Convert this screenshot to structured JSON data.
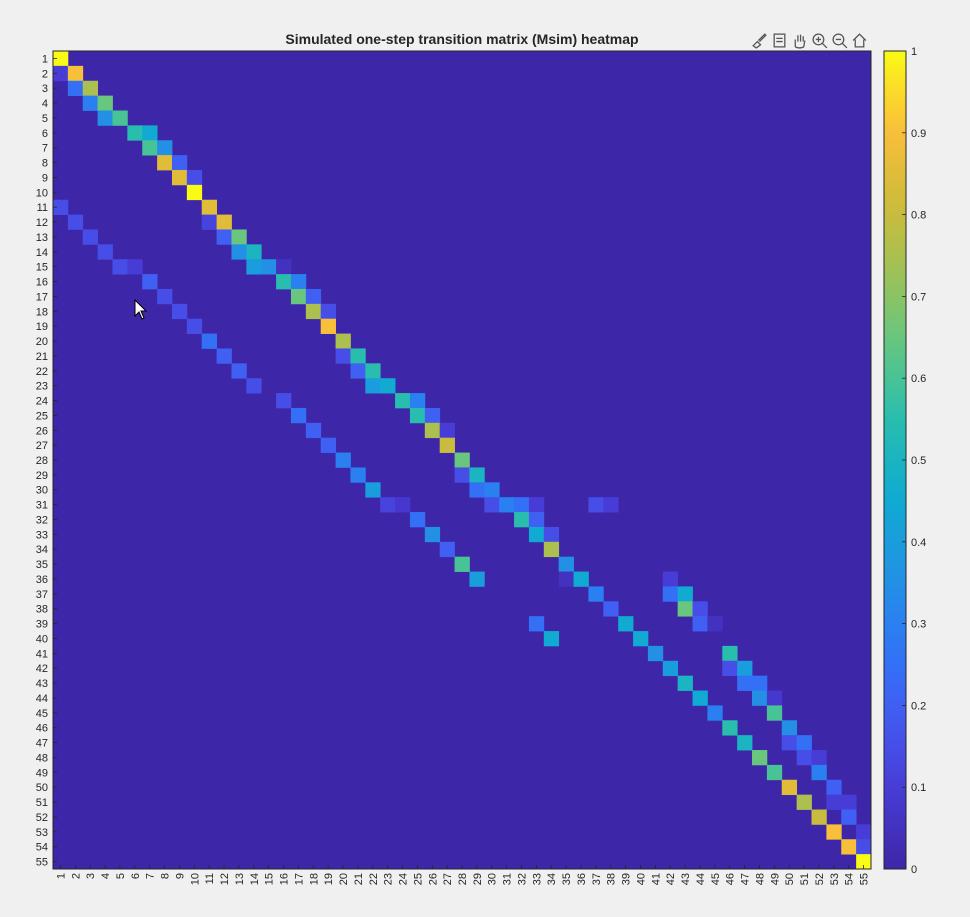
{
  "chart_data": {
    "type": "heatmap",
    "title": "Simulated one-step transition matrix (Msim) heatmap",
    "n": 55,
    "row_labels": [
      "1",
      "2",
      "3",
      "4",
      "5",
      "6",
      "7",
      "8",
      "9",
      "10",
      "11",
      "12",
      "13",
      "14",
      "15",
      "16",
      "17",
      "18",
      "19",
      "20",
      "21",
      "22",
      "23",
      "24",
      "25",
      "26",
      "27",
      "28",
      "29",
      "30",
      "31",
      "32",
      "33",
      "34",
      "35",
      "36",
      "37",
      "38",
      "39",
      "40",
      "41",
      "42",
      "43",
      "44",
      "45",
      "46",
      "47",
      "48",
      "49",
      "50",
      "51",
      "52",
      "53",
      "54",
      "55"
    ],
    "col_labels": [
      "1",
      "2",
      "3",
      "4",
      "5",
      "6",
      "7",
      "8",
      "9",
      "10",
      "11",
      "12",
      "13",
      "14",
      "15",
      "16",
      "17",
      "18",
      "19",
      "20",
      "21",
      "22",
      "23",
      "24",
      "25",
      "26",
      "27",
      "28",
      "29",
      "30",
      "31",
      "32",
      "33",
      "34",
      "35",
      "36",
      "37",
      "38",
      "39",
      "40",
      "41",
      "42",
      "43",
      "44",
      "45",
      "46",
      "47",
      "48",
      "49",
      "50",
      "51",
      "52",
      "53",
      "54",
      "55"
    ],
    "clim": [
      0,
      1
    ],
    "colormap": "parula",
    "colorbar_ticks": [
      "0",
      "0.1",
      "0.2",
      "0.3",
      "0.4",
      "0.5",
      "0.6",
      "0.7",
      "0.8",
      "0.9",
      "1"
    ],
    "entries": [
      [
        1,
        1,
        1.0
      ],
      [
        2,
        1,
        0.1
      ],
      [
        2,
        2,
        0.9
      ],
      [
        3,
        2,
        0.25
      ],
      [
        3,
        3,
        0.75
      ],
      [
        4,
        3,
        0.3
      ],
      [
        4,
        4,
        0.65
      ],
      [
        5,
        4,
        0.35
      ],
      [
        5,
        5,
        0.6
      ],
      [
        6,
        6,
        0.55
      ],
      [
        6,
        7,
        0.45
      ],
      [
        7,
        7,
        0.6
      ],
      [
        7,
        8,
        0.35
      ],
      [
        8,
        8,
        0.85
      ],
      [
        8,
        9,
        0.2
      ],
      [
        9,
        9,
        0.85
      ],
      [
        9,
        10,
        0.15
      ],
      [
        10,
        10,
        1.0
      ],
      [
        11,
        1,
        0.15
      ],
      [
        11,
        11,
        0.85
      ],
      [
        12,
        2,
        0.15
      ],
      [
        12,
        11,
        0.12
      ],
      [
        12,
        12,
        0.85
      ],
      [
        13,
        3,
        0.15
      ],
      [
        13,
        12,
        0.2
      ],
      [
        13,
        13,
        0.65
      ],
      [
        14,
        4,
        0.15
      ],
      [
        14,
        13,
        0.35
      ],
      [
        14,
        14,
        0.5
      ],
      [
        15,
        5,
        0.15
      ],
      [
        15,
        6,
        0.1
      ],
      [
        15,
        14,
        0.4
      ],
      [
        15,
        15,
        0.35
      ],
      [
        15,
        16,
        0.05
      ],
      [
        16,
        7,
        0.2
      ],
      [
        16,
        16,
        0.55
      ],
      [
        16,
        17,
        0.3
      ],
      [
        17,
        8,
        0.15
      ],
      [
        17,
        17,
        0.65
      ],
      [
        17,
        18,
        0.2
      ],
      [
        18,
        9,
        0.15
      ],
      [
        18,
        18,
        0.75
      ],
      [
        18,
        19,
        0.15
      ],
      [
        19,
        10,
        0.15
      ],
      [
        19,
        19,
        0.9
      ],
      [
        20,
        11,
        0.25
      ],
      [
        20,
        20,
        0.75
      ],
      [
        21,
        12,
        0.2
      ],
      [
        21,
        20,
        0.15
      ],
      [
        21,
        21,
        0.55
      ],
      [
        22,
        13,
        0.2
      ],
      [
        22,
        21,
        0.2
      ],
      [
        22,
        22,
        0.55
      ],
      [
        23,
        14,
        0.15
      ],
      [
        23,
        22,
        0.4
      ],
      [
        23,
        23,
        0.45
      ],
      [
        24,
        16,
        0.15
      ],
      [
        24,
        24,
        0.55
      ],
      [
        24,
        25,
        0.3
      ],
      [
        25,
        17,
        0.25
      ],
      [
        25,
        25,
        0.55
      ],
      [
        25,
        26,
        0.2
      ],
      [
        26,
        18,
        0.2
      ],
      [
        26,
        26,
        0.75
      ],
      [
        26,
        27,
        0.1
      ],
      [
        27,
        19,
        0.2
      ],
      [
        27,
        27,
        0.8
      ],
      [
        28,
        20,
        0.3
      ],
      [
        28,
        28,
        0.65
      ],
      [
        29,
        21,
        0.3
      ],
      [
        29,
        28,
        0.15
      ],
      [
        29,
        29,
        0.5
      ],
      [
        30,
        22,
        0.4
      ],
      [
        30,
        29,
        0.25
      ],
      [
        30,
        30,
        0.3
      ],
      [
        31,
        23,
        0.12
      ],
      [
        31,
        24,
        0.08
      ],
      [
        31,
        30,
        0.15
      ],
      [
        31,
        31,
        0.3
      ],
      [
        31,
        32,
        0.25
      ],
      [
        31,
        33,
        0.1
      ],
      [
        31,
        37,
        0.15
      ],
      [
        31,
        38,
        0.1
      ],
      [
        32,
        25,
        0.25
      ],
      [
        32,
        32,
        0.55
      ],
      [
        32,
        33,
        0.2
      ],
      [
        33,
        26,
        0.35
      ],
      [
        33,
        33,
        0.45
      ],
      [
        33,
        34,
        0.15
      ],
      [
        34,
        27,
        0.2
      ],
      [
        34,
        34,
        0.75
      ],
      [
        35,
        28,
        0.6
      ],
      [
        35,
        35,
        0.35
      ],
      [
        36,
        29,
        0.4
      ],
      [
        36,
        35,
        0.05
      ],
      [
        36,
        36,
        0.45
      ],
      [
        36,
        42,
        0.1
      ],
      [
        37,
        37,
        0.3
      ],
      [
        37,
        42,
        0.25
      ],
      [
        37,
        43,
        0.45
      ],
      [
        38,
        38,
        0.2
      ],
      [
        38,
        43,
        0.65
      ],
      [
        38,
        44,
        0.15
      ],
      [
        39,
        33,
        0.25
      ],
      [
        39,
        39,
        0.45
      ],
      [
        39,
        44,
        0.2
      ],
      [
        39,
        45,
        0.05
      ],
      [
        40,
        34,
        0.45
      ],
      [
        40,
        40,
        0.45
      ],
      [
        41,
        41,
        0.35
      ],
      [
        41,
        46,
        0.55
      ],
      [
        42,
        42,
        0.4
      ],
      [
        42,
        46,
        0.15
      ],
      [
        42,
        47,
        0.4
      ],
      [
        43,
        43,
        0.5
      ],
      [
        43,
        47,
        0.25
      ],
      [
        43,
        48,
        0.25
      ],
      [
        44,
        44,
        0.45
      ],
      [
        44,
        48,
        0.35
      ],
      [
        44,
        49,
        0.08
      ],
      [
        45,
        45,
        0.3
      ],
      [
        45,
        49,
        0.6
      ],
      [
        46,
        46,
        0.55
      ],
      [
        46,
        50,
        0.35
      ],
      [
        47,
        47,
        0.5
      ],
      [
        47,
        50,
        0.15
      ],
      [
        47,
        51,
        0.25
      ],
      [
        48,
        48,
        0.65
      ],
      [
        48,
        51,
        0.15
      ],
      [
        48,
        52,
        0.1
      ],
      [
        49,
        49,
        0.6
      ],
      [
        49,
        52,
        0.3
      ],
      [
        50,
        50,
        0.85
      ],
      [
        50,
        53,
        0.2
      ],
      [
        51,
        51,
        0.75
      ],
      [
        51,
        53,
        0.1
      ],
      [
        51,
        54,
        0.1
      ],
      [
        52,
        52,
        0.8
      ],
      [
        52,
        54,
        0.2
      ],
      [
        53,
        53,
        0.9
      ],
      [
        53,
        55,
        0.1
      ],
      [
        54,
        54,
        0.9
      ],
      [
        54,
        55,
        0.15
      ],
      [
        55,
        55,
        1.0
      ]
    ]
  },
  "toolbar": {
    "buttons": [
      "brush-icon",
      "datatip-icon",
      "pan-icon",
      "zoom-in-icon",
      "zoom-out-icon",
      "home-icon"
    ]
  }
}
